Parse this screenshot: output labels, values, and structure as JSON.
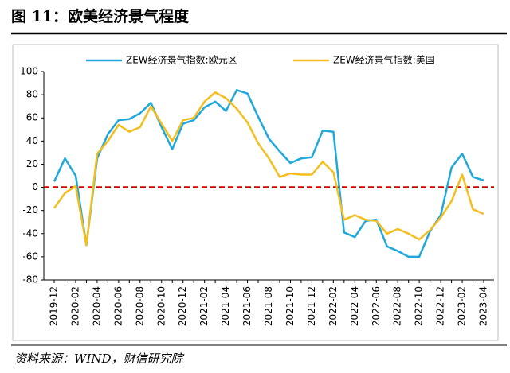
{
  "chart_data": {
    "type": "line",
    "title": "图 11：欧美经济景气程度",
    "source": "资料来源：WIND，财信研究院",
    "categories": [
      "2019-12",
      null,
      "2020-02",
      null,
      "2020-04",
      null,
      "2020-06",
      null,
      "2020-08",
      null,
      "2020-10",
      null,
      "2020-12",
      null,
      "2021-02",
      null,
      "2021-04",
      null,
      "2021-06",
      null,
      "2021-08",
      null,
      "2021-10",
      null,
      "2021-12",
      null,
      "2022-02",
      null,
      "2022-04",
      null,
      "2022-06",
      null,
      "2022-08",
      null,
      "2022-10",
      null,
      "2022-12",
      null,
      "2023-02",
      null,
      "2023-04"
    ],
    "series": [
      {
        "name": "ZEW经济景气指数:欧元区",
        "color": "#1fa8dc",
        "values": [
          5,
          25,
          10,
          -50,
          25,
          46,
          58,
          59,
          64,
          73,
          52,
          33,
          55,
          58,
          69,
          74,
          66,
          84,
          81,
          61,
          42,
          31,
          21,
          25,
          26,
          49,
          48,
          -39,
          -43,
          -29,
          -28,
          -51,
          -55,
          -60,
          -60,
          -38,
          -24,
          17,
          29,
          9,
          6
        ]
      },
      {
        "name": "ZEW经济景气指数:美国",
        "color": "#f5be1e",
        "values": [
          -18,
          -5,
          1,
          -50,
          29,
          40,
          54,
          48,
          52,
          70,
          55,
          40,
          58,
          60,
          74,
          82,
          77,
          68,
          56,
          38,
          25,
          9,
          12,
          11,
          11,
          22,
          13,
          -28,
          -24,
          -28,
          -29,
          -40,
          -36,
          -40,
          -45,
          -37,
          -26,
          -12,
          11,
          -19,
          -23
        ]
      }
    ],
    "ylim": [
      -80,
      100
    ],
    "yticks": [
      -80,
      -60,
      -40,
      -20,
      0,
      20,
      40,
      60,
      80,
      100
    ],
    "reference_line": {
      "value": 0,
      "color": "#d00000"
    },
    "grid": false,
    "legend": "top"
  }
}
